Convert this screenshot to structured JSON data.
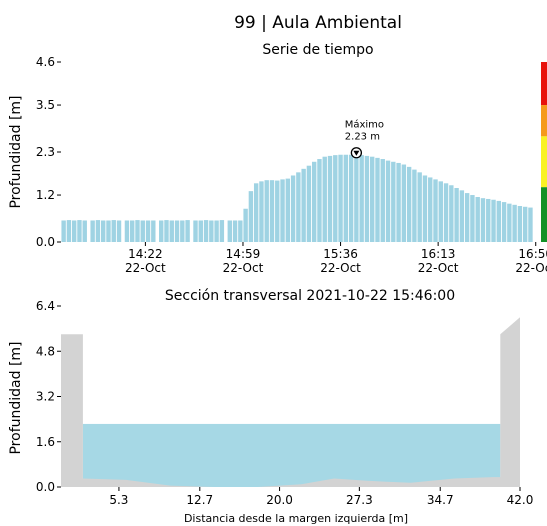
{
  "header": {
    "title": "99 | Aula Ambiental"
  },
  "colors": {
    "bar": "#9fd3e3",
    "bank": "#d3d3d3",
    "water": "#a6d8e5",
    "alert_red": "#e8120c",
    "alert_orange": "#f59a1b",
    "alert_yellow": "#f9f223",
    "alert_green": "#129126"
  },
  "chart_data": [
    {
      "type": "bar",
      "title": "Serie de tiempo",
      "ylabel": "Profundidad [m]",
      "xlabel": "",
      "ylim": [
        0,
        4.6
      ],
      "yticks": [
        "0.0",
        "1.2",
        "2.3",
        "3.5",
        "4.6"
      ],
      "xtick_times": [
        "14:22",
        "14:59",
        "15:36",
        "16:13",
        "16:50"
      ],
      "xtick_dates": [
        "22-Oct",
        "22-Oct",
        "22-Oct",
        "22-Oct",
        "22-Oct"
      ],
      "x_range_minutes": [
        "13:50",
        "16:52"
      ],
      "series": [
        {
          "x": [
            "13:51",
            "13:53",
            "13:55",
            "13:57",
            "13:59",
            "14:02",
            "14:04",
            "14:06",
            "14:08",
            "14:10",
            "14:12",
            "14:15",
            "14:17",
            "14:19",
            "14:21",
            "14:23",
            "14:25",
            "14:28",
            "14:30",
            "14:32",
            "14:34",
            "14:36",
            "14:38",
            "14:41",
            "14:43",
            "14:45",
            "14:47",
            "14:49",
            "14:51",
            "14:54",
            "14:56",
            "14:58",
            "15:00",
            "15:02",
            "15:04",
            "15:06",
            "15:08",
            "15:10",
            "15:12",
            "15:14",
            "15:16",
            "15:18",
            "15:20",
            "15:22",
            "15:24",
            "15:26",
            "15:28",
            "15:30",
            "15:32",
            "15:34",
            "15:36",
            "15:38",
            "15:40",
            "15:42",
            "15:44",
            "15:46",
            "15:48",
            "15:50",
            "15:52",
            "15:54",
            "15:56",
            "15:58",
            "16:00",
            "16:02",
            "16:04",
            "16:06",
            "16:08",
            "16:10",
            "16:12",
            "16:14",
            "16:16",
            "16:18",
            "16:20",
            "16:22",
            "16:24",
            "16:26",
            "16:28",
            "16:30",
            "16:32",
            "16:34",
            "16:36",
            "16:38",
            "16:40",
            "16:42",
            "16:44",
            "16:46",
            "16:48"
          ],
          "values": [
            0.55,
            0.56,
            0.55,
            0.56,
            0.55,
            0.55,
            0.56,
            0.55,
            0.55,
            0.56,
            0.55,
            0.55,
            0.55,
            0.56,
            0.55,
            0.55,
            0.55,
            0.55,
            0.56,
            0.55,
            0.55,
            0.55,
            0.56,
            0.55,
            0.55,
            0.56,
            0.55,
            0.55,
            0.56,
            0.55,
            0.55,
            0.55,
            0.85,
            1.3,
            1.5,
            1.55,
            1.58,
            1.58,
            1.57,
            1.6,
            1.62,
            1.7,
            1.78,
            1.87,
            1.95,
            2.05,
            2.12,
            2.18,
            2.2,
            2.22,
            2.23,
            2.23,
            2.23,
            2.22,
            2.22,
            2.2,
            2.18,
            2.15,
            2.12,
            2.08,
            2.05,
            2.02,
            1.98,
            1.92,
            1.85,
            1.78,
            1.7,
            1.65,
            1.6,
            1.55,
            1.5,
            1.45,
            1.38,
            1.32,
            1.25,
            1.2,
            1.15,
            1.12,
            1.1,
            1.08,
            1.05,
            1.02,
            0.98,
            0.95,
            0.92,
            0.9,
            0.88
          ]
        }
      ],
      "annotation": {
        "label": "Máximo",
        "value_text": "2.23 m",
        "x": "15:42",
        "y": 2.23
      },
      "alert_levels": [
        {
          "color": "red",
          "from": 3.5,
          "to": 4.6
        },
        {
          "color": "orange",
          "from": 2.7,
          "to": 3.5
        },
        {
          "color": "yellow",
          "from": 1.4,
          "to": 2.7
        },
        {
          "color": "green",
          "from": 0.0,
          "to": 1.4
        }
      ]
    },
    {
      "type": "area",
      "title": "Sección transversal 2021-10-22 15:46:00",
      "ylabel": "Profundidad [m]",
      "xlabel": "Distancia desde la margen izquierda [m]",
      "ylim": [
        0,
        6.4
      ],
      "xlim": [
        0,
        42.0
      ],
      "yticks": [
        "0.0",
        "1.6",
        "3.2",
        "4.8",
        "6.4"
      ],
      "xticks": [
        "5.3",
        "12.7",
        "20.0",
        "27.3",
        "34.7",
        "42.0"
      ],
      "xtick_values": [
        5.3,
        12.7,
        20.0,
        27.3,
        34.7,
        42.0
      ],
      "water_level": 2.23,
      "bed_profile": {
        "x": [
          0,
          2.0,
          2.0,
          6.0,
          10.0,
          14.0,
          18.0,
          22.0,
          25.0,
          28.0,
          32.0,
          36.0,
          39.5,
          40.2,
          40.2,
          42.0,
          42.0
        ],
        "y": [
          5.4,
          5.4,
          0.3,
          0.25,
          0.05,
          0.0,
          0.0,
          0.1,
          0.3,
          0.22,
          0.15,
          0.3,
          0.35,
          0.35,
          5.4,
          6.0,
          0.0
        ]
      }
    }
  ]
}
